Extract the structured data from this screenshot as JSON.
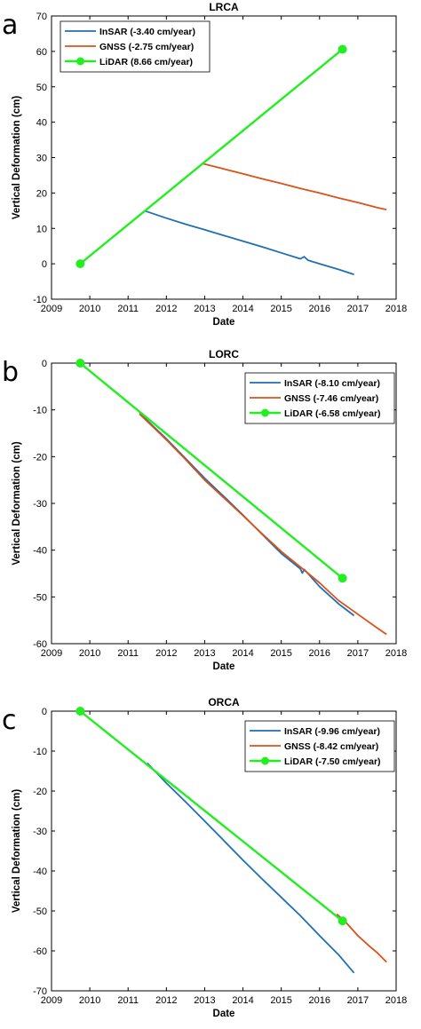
{
  "chart_data": [
    {
      "type": "line",
      "panel_label": "a",
      "title": "LRCA",
      "xlabel": "Date",
      "ylabel": "Vertical Deformation (cm)",
      "xlim": [
        2009,
        2018
      ],
      "ylim": [
        -10,
        70
      ],
      "xticks": [
        "2009",
        "2010",
        "2011",
        "2012",
        "2013",
        "2014",
        "2015",
        "2016",
        "2017",
        "2018"
      ],
      "yticks": [
        "-10",
        "0",
        "10",
        "20",
        "30",
        "40",
        "50",
        "60",
        "70"
      ],
      "legend_position": "top-left",
      "series": [
        {
          "name": "InSAR (-3.40 cm/year)",
          "color": "#1f6fb4",
          "marker": "none",
          "points": [
            [
              2011.45,
              14.9
            ],
            [
              2012.0,
              12.9
            ],
            [
              2012.5,
              11.2
            ],
            [
              2013.0,
              9.6
            ],
            [
              2013.5,
              8.0
            ],
            [
              2014.0,
              6.4
            ],
            [
              2014.5,
              4.8
            ],
            [
              2015.0,
              3.1
            ],
            [
              2015.5,
              1.4
            ],
            [
              2015.6,
              2.0
            ],
            [
              2015.7,
              1.0
            ],
            [
              2016.0,
              0.0
            ],
            [
              2016.5,
              -1.6
            ],
            [
              2016.9,
              -3.0
            ]
          ]
        },
        {
          "name": "GNSS (-2.75 cm/year)",
          "color": "#d95319",
          "marker": "none",
          "points": [
            [
              2012.95,
              28.3
            ],
            [
              2013.5,
              26.8
            ],
            [
              2014.0,
              25.4
            ],
            [
              2014.5,
              24.0
            ],
            [
              2015.0,
              22.7
            ],
            [
              2015.5,
              21.3
            ],
            [
              2016.0,
              20.0
            ],
            [
              2016.5,
              18.6
            ],
            [
              2017.0,
              17.3
            ],
            [
              2017.5,
              15.9
            ],
            [
              2017.75,
              15.3
            ]
          ]
        },
        {
          "name": "LiDAR (8.66 cm/year)",
          "color": "#22ee22",
          "marker": "circle",
          "points": [
            [
              2009.75,
              0
            ],
            [
              2016.6,
              60.6
            ]
          ]
        }
      ]
    },
    {
      "type": "line",
      "panel_label": "b",
      "title": "LORC",
      "xlabel": "Date",
      "ylabel": "Vertical Deformation (cm)",
      "xlim": [
        2009,
        2018
      ],
      "ylim": [
        -60,
        0
      ],
      "xticks": [
        "2009",
        "2010",
        "2011",
        "2012",
        "2013",
        "2014",
        "2015",
        "2016",
        "2017",
        "2018"
      ],
      "yticks": [
        "-60",
        "-50",
        "-40",
        "-30",
        "-20",
        "-10",
        "0"
      ],
      "legend_position": "top-right",
      "series": [
        {
          "name": "InSAR (-8.10 cm/year)",
          "color": "#1f6fb4",
          "marker": "none",
          "points": [
            [
              2011.3,
              -10.7
            ],
            [
              2012.0,
              -16.2
            ],
            [
              2012.5,
              -20.4
            ],
            [
              2013.0,
              -24.6
            ],
            [
              2013.5,
              -28.5
            ],
            [
              2014.0,
              -32.5
            ],
            [
              2014.5,
              -36.6
            ],
            [
              2015.0,
              -40.7
            ],
            [
              2015.5,
              -44.0
            ],
            [
              2015.55,
              -44.9
            ],
            [
              2015.6,
              -44.1
            ],
            [
              2016.0,
              -47.8
            ],
            [
              2016.5,
              -51.5
            ],
            [
              2016.9,
              -54.0
            ]
          ]
        },
        {
          "name": "GNSS (-7.46 cm/year)",
          "color": "#d95319",
          "marker": "none",
          "points": [
            [
              2011.3,
              -10.9
            ],
            [
              2012.0,
              -16.4
            ],
            [
              2012.5,
              -20.6
            ],
            [
              2013.0,
              -25.0
            ],
            [
              2013.5,
              -28.8
            ],
            [
              2014.0,
              -32.6
            ],
            [
              2014.5,
              -36.5
            ],
            [
              2015.0,
              -40.3
            ],
            [
              2015.5,
              -43.6
            ],
            [
              2016.0,
              -47.0
            ],
            [
              2016.5,
              -50.8
            ],
            [
              2017.0,
              -53.7
            ],
            [
              2017.5,
              -56.6
            ],
            [
              2017.75,
              -58.0
            ]
          ]
        },
        {
          "name": "LiDAR (-6.58 cm/year)",
          "color": "#22ee22",
          "marker": "circle",
          "points": [
            [
              2009.75,
              0
            ],
            [
              2016.6,
              -46.0
            ]
          ]
        }
      ]
    },
    {
      "type": "line",
      "panel_label": "c",
      "title": "ORCA",
      "xlabel": "Date",
      "ylabel": "Vertical Deformation (cm)",
      "xlim": [
        2009,
        2018
      ],
      "ylim": [
        -70,
        0
      ],
      "xticks": [
        "2009",
        "2010",
        "2011",
        "2012",
        "2013",
        "2014",
        "2015",
        "2016",
        "2017",
        "2018"
      ],
      "yticks": [
        "-70",
        "-60",
        "-50",
        "-40",
        "-30",
        "-20",
        "-10",
        "0"
      ],
      "legend_position": "top-right",
      "series": [
        {
          "name": "InSAR (-9.96 cm/year)",
          "color": "#1f6fb4",
          "marker": "none",
          "points": [
            [
              2011.5,
              -13.0
            ],
            [
              2012.0,
              -18.0
            ],
            [
              2012.5,
              -22.7
            ],
            [
              2013.0,
              -27.5
            ],
            [
              2013.5,
              -32.4
            ],
            [
              2014.0,
              -37.3
            ],
            [
              2014.5,
              -42.0
            ],
            [
              2015.0,
              -46.6
            ],
            [
              2015.5,
              -51.2
            ],
            [
              2016.0,
              -56.2
            ],
            [
              2016.5,
              -61.0
            ],
            [
              2016.9,
              -65.5
            ]
          ]
        },
        {
          "name": "GNSS (-8.42 cm/year)",
          "color": "#d95319",
          "marker": "none",
          "points": [
            [
              2016.45,
              -50.8
            ],
            [
              2016.7,
              -53.0
            ],
            [
              2017.0,
              -56.2
            ],
            [
              2017.3,
              -58.8
            ],
            [
              2017.5,
              -60.4
            ],
            [
              2017.75,
              -62.8
            ]
          ]
        },
        {
          "name": "LiDAR (-7.50 cm/year)",
          "color": "#22ee22",
          "marker": "circle",
          "points": [
            [
              2009.75,
              0
            ],
            [
              2016.6,
              -52.5
            ]
          ]
        }
      ]
    }
  ]
}
